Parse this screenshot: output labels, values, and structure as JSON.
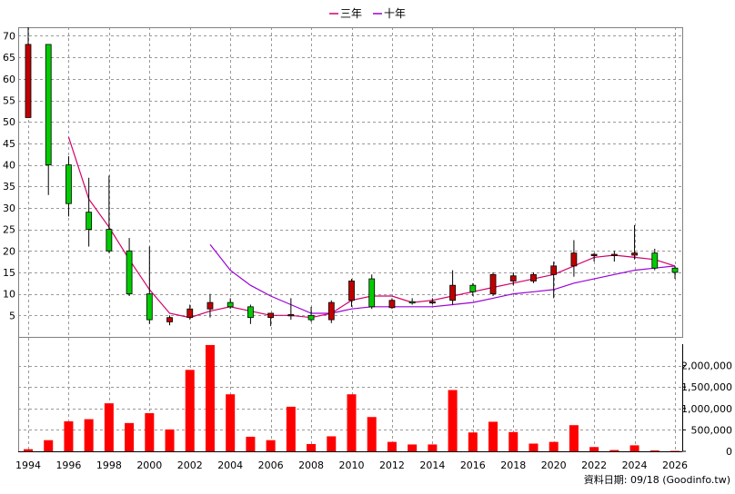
{
  "source_note": "資料日期: 09/18 (Goodinfo.tw)",
  "colors": {
    "up": "#c00000",
    "down": "#00cc00",
    "candle_edge": "#000000",
    "ma3": "#d4006a",
    "ma10": "#9b00d6",
    "volume": "#ff0000",
    "grid": "#999999"
  },
  "chart_data": [
    {
      "type": "candlestick",
      "title": "",
      "legend": [
        {
          "name": "三年",
          "color": "#d4006a"
        },
        {
          "name": "十年",
          "color": "#9b00d6"
        }
      ],
      "legend_position": "top-center",
      "grid": true,
      "ylim": [
        0,
        72
      ],
      "yticks": [
        5,
        10,
        15,
        20,
        25,
        30,
        35,
        40,
        45,
        50,
        55,
        60,
        65,
        70
      ],
      "candles": [
        {
          "year": 1994,
          "open": 51,
          "high": 72,
          "low": 51,
          "close": 68
        },
        {
          "year": 1995,
          "open": 68,
          "high": 68,
          "low": 33,
          "close": 40
        },
        {
          "year": 1996,
          "open": 40,
          "high": 42,
          "low": 28,
          "close": 31
        },
        {
          "year": 1997,
          "open": 29,
          "high": 37,
          "low": 21,
          "close": 25
        },
        {
          "year": 1998,
          "open": 25,
          "high": 37.5,
          "low": 19.5,
          "close": 20
        },
        {
          "year": 1999,
          "open": 20,
          "high": 23,
          "low": 9.5,
          "close": 10
        },
        {
          "year": 2000,
          "open": 10,
          "high": 21,
          "low": 3,
          "close": 4
        },
        {
          "year": 2001,
          "open": 3.5,
          "high": 5,
          "low": 2.7,
          "close": 4.5
        },
        {
          "year": 2002,
          "open": 4.5,
          "high": 7.5,
          "low": 4,
          "close": 6.5
        },
        {
          "year": 2003,
          "open": 6.5,
          "high": 10,
          "low": 4.5,
          "close": 8
        },
        {
          "year": 2004,
          "open": 8,
          "high": 9,
          "low": 6.5,
          "close": 7
        },
        {
          "year": 2005,
          "open": 7,
          "high": 7.5,
          "low": 3,
          "close": 4.5
        },
        {
          "year": 2006,
          "open": 4.5,
          "high": 5.5,
          "low": 2.5,
          "close": 5.5
        },
        {
          "year": 2007,
          "open": 5,
          "high": 9,
          "low": 4,
          "close": 5.2
        },
        {
          "year": 2008,
          "open": 5,
          "high": 7,
          "low": 3.5,
          "close": 4
        },
        {
          "year": 2009,
          "open": 4,
          "high": 8.5,
          "low": 3.2,
          "close": 8
        },
        {
          "year": 2010,
          "open": 8.5,
          "high": 13.5,
          "low": 7,
          "close": 13
        },
        {
          "year": 2011,
          "open": 13.5,
          "high": 14.5,
          "low": 6.5,
          "close": 7
        },
        {
          "year": 2012,
          "open": 6.8,
          "high": 9,
          "low": 6.5,
          "close": 8.5
        },
        {
          "year": 2013,
          "open": 8.2,
          "high": 9,
          "low": 7.5,
          "close": 8
        },
        {
          "year": 2014,
          "open": 8,
          "high": 9,
          "low": 7.5,
          "close": 8.2
        },
        {
          "year": 2015,
          "open": 8.5,
          "high": 15.5,
          "low": 7.5,
          "close": 12
        },
        {
          "year": 2016,
          "open": 12,
          "high": 12.5,
          "low": 9.5,
          "close": 10.5
        },
        {
          "year": 2017,
          "open": 10,
          "high": 15,
          "low": 9.5,
          "close": 14.5
        },
        {
          "year": 2018,
          "open": 13,
          "high": 15,
          "low": 12,
          "close": 14.2
        },
        {
          "year": 2019,
          "open": 13,
          "high": 15,
          "low": 12.5,
          "close": 14.5
        },
        {
          "year": 2020,
          "open": 14.5,
          "high": 17.5,
          "low": 9,
          "close": 16.5
        },
        {
          "year": 2021,
          "open": 16.5,
          "high": 22.5,
          "low": 14,
          "close": 19.5
        },
        {
          "year": 2022,
          "open": 19,
          "high": 19.5,
          "low": 17.5,
          "close": 19.2
        },
        {
          "year": 2023,
          "open": 19,
          "high": 20,
          "low": 17.5,
          "close": 19.2
        },
        {
          "year": 2024,
          "open": 19,
          "high": 26,
          "low": 18,
          "close": 19.5
        },
        {
          "year": 2025,
          "open": 19.5,
          "high": 20.5,
          "low": 15.5,
          "close": 16
        },
        {
          "year": 2026,
          "open": 16,
          "high": 16.5,
          "low": 13.5,
          "close": 15
        }
      ],
      "series": [
        {
          "name": "三年",
          "x": [
            1996,
            1997,
            1998,
            1999,
            2000,
            2001,
            2002,
            2003,
            2004,
            2005,
            2006,
            2007,
            2008,
            2009,
            2010,
            2011,
            2012,
            2013,
            2014,
            2015,
            2016,
            2017,
            2018,
            2019,
            2020,
            2021,
            2022,
            2023,
            2024,
            2025,
            2026
          ],
          "values": [
            46.5,
            32,
            25.5,
            18,
            11,
            5.5,
            4.5,
            6,
            7,
            6,
            5,
            5,
            4.5,
            5.5,
            8.5,
            9.5,
            9.5,
            8,
            8.5,
            9.5,
            10.5,
            11.5,
            12.5,
            13.5,
            14.5,
            16.5,
            18.5,
            19,
            18.5,
            18,
            16.5
          ]
        },
        {
          "name": "十年",
          "x": [
            2003,
            2004,
            2005,
            2006,
            2007,
            2008,
            2009,
            2010,
            2011,
            2012,
            2013,
            2014,
            2015,
            2016,
            2017,
            2018,
            2019,
            2020,
            2021,
            2022,
            2023,
            2024,
            2025,
            2026
          ],
          "values": [
            21.5,
            15.5,
            12,
            9.5,
            7.5,
            5.5,
            5.5,
            6.5,
            7,
            7,
            7,
            7,
            7.5,
            8,
            9,
            10,
            10.5,
            11,
            12.5,
            13.5,
            14.5,
            15.5,
            16,
            16.5
          ]
        }
      ]
    },
    {
      "type": "bar",
      "ylim": [
        0,
        2500000
      ],
      "ytick_labels": [
        "0",
        "500,000",
        "1,000,000",
        "1,500,000",
        "2,000,000"
      ],
      "yticks": [
        0,
        500000,
        1000000,
        1500000,
        2000000
      ],
      "x_tick_labels": [
        "1994",
        "1996",
        "1998",
        "2000",
        "2002",
        "2004",
        "2006",
        "2008",
        "2010",
        "2012",
        "2014",
        "2016",
        "2018",
        "2020",
        "2022",
        "2024",
        "2026"
      ],
      "categories": [
        1994,
        1995,
        1996,
        1997,
        1998,
        1999,
        2000,
        2001,
        2002,
        2003,
        2004,
        2005,
        2006,
        2007,
        2008,
        2009,
        2010,
        2011,
        2012,
        2013,
        2014,
        2015,
        2016,
        2017,
        2018,
        2019,
        2020,
        2021,
        2022,
        2023,
        2024,
        2025,
        2026
      ],
      "values": [
        50000,
        260000,
        700000,
        750000,
        1120000,
        660000,
        890000,
        510000,
        1900000,
        2480000,
        1330000,
        340000,
        260000,
        1040000,
        170000,
        350000,
        1330000,
        800000,
        220000,
        160000,
        160000,
        1430000,
        440000,
        690000,
        450000,
        180000,
        220000,
        610000,
        100000,
        30000,
        140000,
        20000,
        10000
      ]
    }
  ]
}
